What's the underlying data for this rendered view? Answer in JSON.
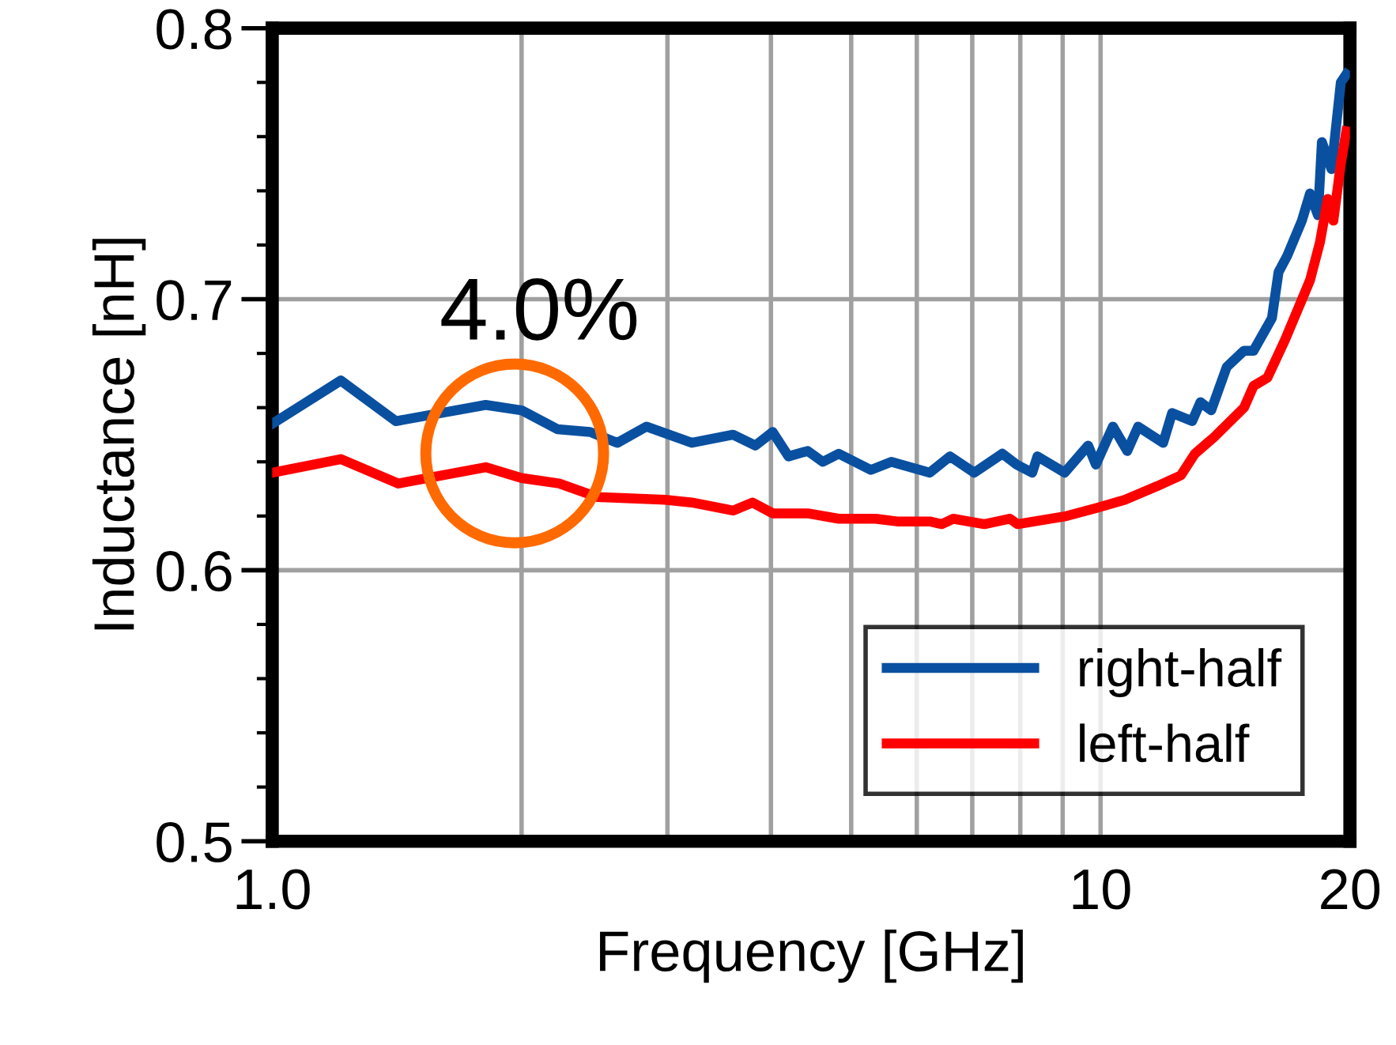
{
  "chart_data": {
    "type": "line",
    "xlabel": "Frequency [GHz]",
    "ylabel": "Inductance [nH]",
    "log": "x",
    "xlim": [
      1.0,
      20
    ],
    "ylim": [
      0.5,
      0.8
    ],
    "xticks": [
      {
        "value": 1.0,
        "label": "1.0"
      },
      {
        "value": 2,
        "label": null
      },
      {
        "value": 3,
        "label": null
      },
      {
        "value": 4,
        "label": null
      },
      {
        "value": 5,
        "label": null
      },
      {
        "value": 6,
        "label": null
      },
      {
        "value": 7,
        "label": null
      },
      {
        "value": 8,
        "label": null
      },
      {
        "value": 9,
        "label": null
      },
      10,
      20
    ],
    "yticks": [
      0.5,
      0.6,
      0.7,
      0.8
    ],
    "grid": true,
    "legend": "bottom right",
    "line_style": "solid",
    "marker": "none",
    "annotations": [
      "4.0%"
    ],
    "series": [
      {
        "name": "right-half",
        "color": "#0a50a0",
        "x": [
          1.0,
          1.21,
          1.41,
          1.81,
          2.0,
          2.21,
          2.42,
          2.61,
          2.83,
          3.21,
          3.6,
          3.83,
          4.02,
          4.2,
          4.43,
          4.62,
          4.83,
          5.28,
          5.59,
          6.22,
          6.58,
          7.04,
          7.61,
          7.92,
          8.27,
          8.39,
          9.05,
          9.66,
          9.87,
          10.35,
          10.77,
          11.1,
          11.9,
          12.2,
          12.9,
          13.2,
          13.6,
          14.2,
          14.9,
          15.3,
          16.1,
          16.4,
          16.8,
          17.5,
          17.9,
          18.3,
          18.5,
          19.0,
          19.5,
          19.8
        ],
        "values": [
          0.654,
          0.67,
          0.655,
          0.661,
          0.659,
          0.652,
          0.651,
          0.647,
          0.653,
          0.647,
          0.65,
          0.646,
          0.651,
          0.642,
          0.644,
          0.64,
          0.643,
          0.637,
          0.64,
          0.636,
          0.642,
          0.636,
          0.643,
          0.639,
          0.636,
          0.642,
          0.636,
          0.646,
          0.639,
          0.653,
          0.644,
          0.653,
          0.647,
          0.658,
          0.655,
          0.662,
          0.659,
          0.675,
          0.681,
          0.681,
          0.693,
          0.71,
          0.716,
          0.729,
          0.739,
          0.731,
          0.758,
          0.748,
          0.78,
          0.783
        ]
      },
      {
        "name": "left-half",
        "color": "#ff0000",
        "x": [
          1.0,
          1.21,
          1.42,
          1.81,
          2.0,
          2.22,
          2.47,
          2.98,
          3.21,
          3.6,
          3.8,
          4.02,
          4.43,
          4.83,
          5.35,
          5.68,
          6.22,
          6.43,
          6.64,
          7.24,
          7.77,
          7.94,
          9.1,
          9.9,
          10.7,
          11.7,
          12.5,
          13.0,
          13.7,
          14.9,
          15.3,
          15.9,
          16.7,
          17.9,
          18.4,
          18.8,
          19.1,
          19.5,
          19.8
        ],
        "values": [
          0.636,
          0.641,
          0.632,
          0.638,
          0.634,
          0.632,
          0.627,
          0.626,
          0.625,
          0.622,
          0.625,
          0.621,
          0.621,
          0.619,
          0.619,
          0.618,
          0.618,
          0.617,
          0.619,
          0.617,
          0.619,
          0.617,
          0.62,
          0.623,
          0.626,
          0.631,
          0.635,
          0.643,
          0.649,
          0.66,
          0.668,
          0.671,
          0.685,
          0.707,
          0.721,
          0.737,
          0.729,
          0.75,
          0.762
        ]
      }
    ]
  }
}
